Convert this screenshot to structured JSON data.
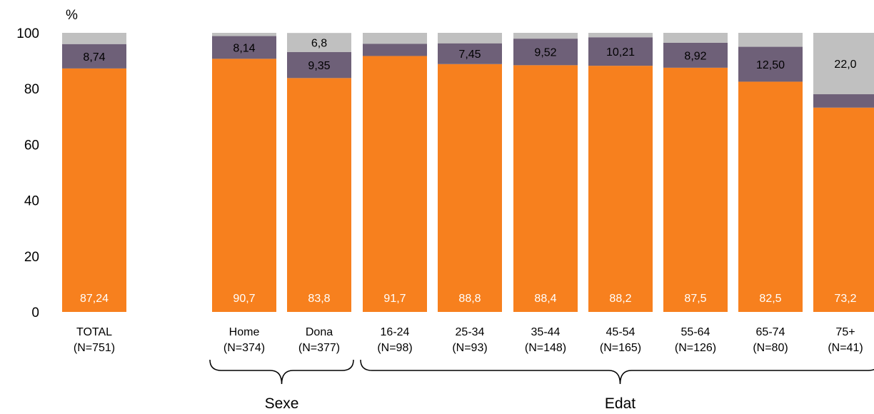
{
  "chart_data": {
    "type": "bar",
    "stacked": true,
    "yunit": "%",
    "ylim": [
      0,
      100
    ],
    "yticks": [
      0,
      20,
      40,
      60,
      80,
      100
    ],
    "grid": false,
    "colors": [
      "#f7801e",
      "#6e6078",
      "#c0c0c0"
    ],
    "categories": [
      {
        "label": "TOTAL",
        "n": "(N=751)"
      },
      {
        "label": "Home",
        "n": "(N=374)"
      },
      {
        "label": "Dona",
        "n": "(N=377)"
      },
      {
        "label": "16-24",
        "n": "(N=98)"
      },
      {
        "label": "25-34",
        "n": "(N=93)"
      },
      {
        "label": "35-44",
        "n": "(N=148)"
      },
      {
        "label": "45-54",
        "n": "(N=165)"
      },
      {
        "label": "55-64",
        "n": "(N=126)"
      },
      {
        "label": "65-74",
        "n": "(N=80)"
      },
      {
        "label": "75+",
        "n": "(N=41)"
      }
    ],
    "series": [
      {
        "values": [
          87.24,
          90.7,
          83.8,
          91.7,
          88.8,
          88.4,
          88.2,
          87.5,
          82.5,
          73.2
        ],
        "labels": [
          "87,24",
          "90,7",
          "83,8",
          "91,7",
          "88,8",
          "88,4",
          "88,2",
          "87,5",
          "82,5",
          "73,2"
        ]
      },
      {
        "values": [
          8.74,
          8.14,
          9.35,
          4.4,
          7.45,
          9.52,
          10.21,
          8.92,
          12.5,
          4.8
        ],
        "labels": [
          "8,74",
          "8,14",
          "9,35",
          "",
          "7,45",
          "9,52",
          "10,21",
          "8,92",
          "12,50",
          ""
        ]
      },
      {
        "values": [
          4.02,
          1.16,
          6.8,
          3.9,
          3.75,
          2.08,
          1.59,
          3.58,
          5.0,
          22.0
        ],
        "labels": [
          "",
          "",
          "6,8",
          "",
          "",
          "",
          "",
          "",
          "",
          "22,0"
        ]
      }
    ],
    "groups": [
      {
        "label": "Sexe",
        "from": 1,
        "to": 2
      },
      {
        "label": "Edat",
        "from": 3,
        "to": 9
      }
    ]
  }
}
